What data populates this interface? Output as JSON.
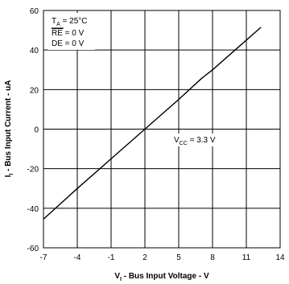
{
  "chart_data": {
    "type": "line",
    "xlabel": "V",
    "xlabel_sub": "I",
    "xlabel_rest": " - Bus Input Voltage - V",
    "ylabel": "I",
    "ylabel_sub": "I",
    "ylabel_rest": " - Bus Input Current - uA",
    "xlim": [
      -7,
      14
    ],
    "ylim": [
      -60,
      60
    ],
    "x_ticks": [
      "-7",
      "-4",
      "-1",
      "2",
      "5",
      "8",
      "11",
      "14"
    ],
    "y_ticks": [
      "60",
      "40",
      "20",
      "0",
      "-20",
      "-40",
      "-60"
    ],
    "grid": true,
    "series": [
      {
        "x": [
          -7,
          -4,
          -1,
          2,
          5,
          7,
          8,
          10,
          12.3
        ],
        "y": [
          -45.5,
          -30,
          -15,
          0,
          15,
          25.5,
          30,
          40,
          51.5
        ]
      }
    ],
    "annotations": {
      "ta": {
        "main": "T",
        "sub": "A",
        "rest": " = 25°C"
      },
      "re": {
        "main": "RE",
        "rest": " = 0 V"
      },
      "de": {
        "text": "DE = 0 V"
      },
      "vcc": {
        "main": "V",
        "sub": "CC",
        "rest": " = 3.3 V"
      }
    }
  }
}
